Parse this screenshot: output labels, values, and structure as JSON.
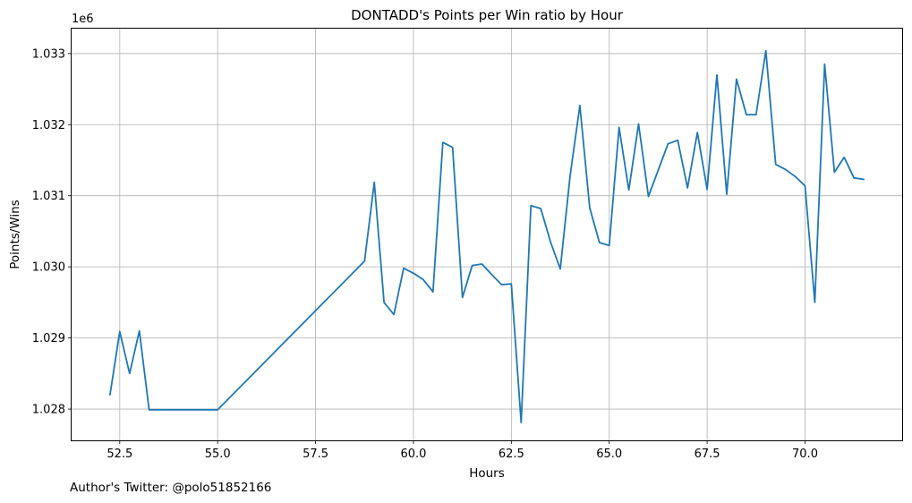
{
  "chart_data": {
    "type": "line",
    "title": "DONTADD's Points per Win ratio by Hour",
    "xlabel": "Hours",
    "ylabel": "Points/Wins",
    "y_offset_label": "1e6",
    "xlim": [
      51.27,
      72.48
    ],
    "ylim": [
      1.02756,
      1.03335
    ],
    "grid": true,
    "x_ticks": [
      52.5,
      55.0,
      57.5,
      60.0,
      62.5,
      65.0,
      67.5,
      70.0
    ],
    "x_tick_labels": [
      "52.5",
      "55.0",
      "57.5",
      "60.0",
      "62.5",
      "65.0",
      "67.5",
      "70.0"
    ],
    "y_ticks": [
      1.028,
      1.029,
      1.03,
      1.031,
      1.032,
      1.033
    ],
    "y_tick_labels": [
      "1.028",
      "1.029",
      "1.030",
      "1.031",
      "1.032",
      "1.033"
    ],
    "color": "#1f77b4",
    "series": [
      {
        "x": [
          52.25,
          52.5,
          52.75,
          53.0,
          53.25,
          53.5,
          55.0,
          58.75,
          59.0,
          59.25,
          59.5,
          59.75,
          60.0,
          60.25,
          60.5,
          60.75,
          61.0,
          61.25,
          61.5,
          61.75,
          62.0,
          62.25,
          62.5,
          62.75,
          63.0,
          63.25,
          63.5,
          63.75,
          64.0,
          64.25,
          64.5,
          64.75,
          65.0,
          65.25,
          65.5,
          65.75,
          66.0,
          66.5,
          66.75,
          67.0,
          67.25,
          67.5,
          67.75,
          68.0,
          68.25,
          68.5,
          68.75,
          69.0,
          69.25,
          69.5,
          69.75,
          70.0,
          70.25,
          70.5,
          70.75,
          71.0,
          71.25,
          71.5
        ],
        "y": [
          1.0282,
          1.02909,
          1.0285,
          1.0291,
          1.02799,
          1.02799,
          1.02799,
          1.03008,
          1.03119,
          1.0295,
          1.02933,
          1.02998,
          1.02991,
          1.02982,
          1.02965,
          1.03175,
          1.03168,
          1.02957,
          1.03002,
          1.03004,
          1.02989,
          1.02975,
          1.02976,
          1.02781,
          1.03086,
          1.03082,
          1.03035,
          1.02997,
          1.03128,
          1.03227,
          1.03083,
          1.03034,
          1.0303,
          1.03196,
          1.03108,
          1.03201,
          1.03099,
          1.03173,
          1.03178,
          1.03111,
          1.03189,
          1.03109,
          1.0327,
          1.03102,
          1.03264,
          1.03214,
          1.03214,
          1.03304,
          1.03144,
          1.03137,
          1.03127,
          1.03114,
          1.0295,
          1.03285,
          1.03133,
          1.03154,
          1.03125,
          1.03123
        ]
      }
    ]
  },
  "footer": {
    "text": "Author's Twitter: @polo51852166"
  }
}
